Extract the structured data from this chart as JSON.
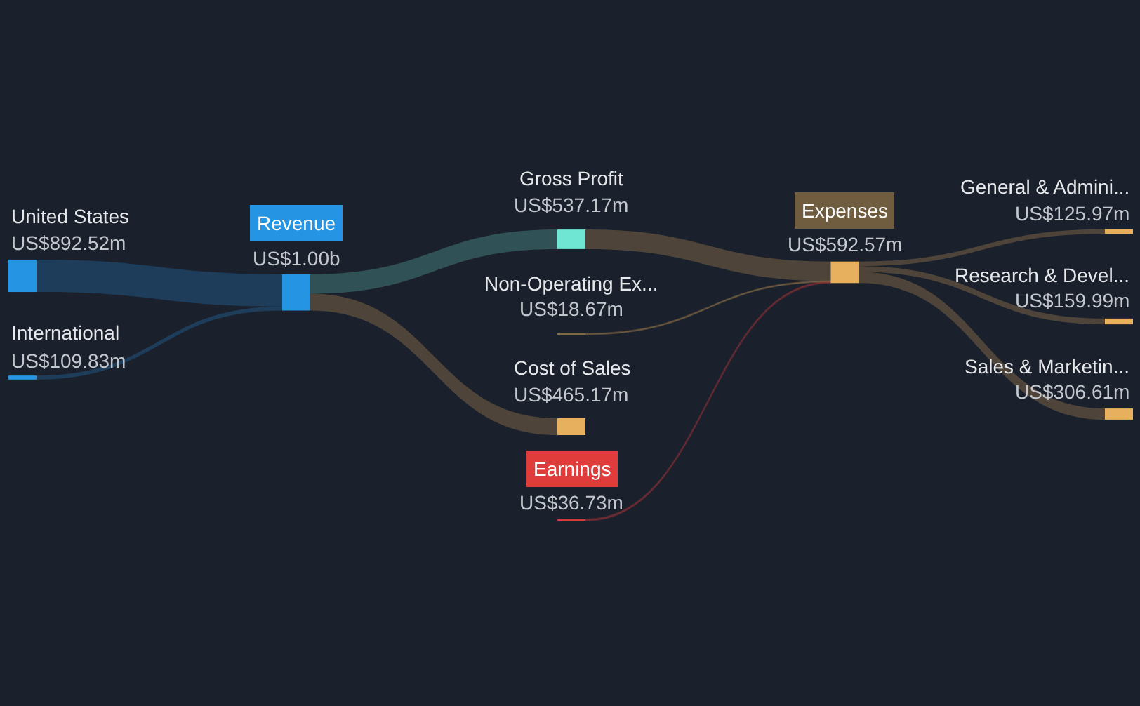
{
  "chart_data": {
    "type": "other",
    "categories": [
      "United States",
      "International",
      "Revenue",
      "Gross Profit",
      "Non-Operating Ex...",
      "Cost of Sales",
      "Earnings",
      "Expenses",
      "General & Admini...",
      "Research & Devel...",
      "Sales & Marketin..."
    ],
    "values": [
      892520000,
      109830000,
      1000000000,
      537170000,
      18670000,
      465170000,
      36730000,
      592570000,
      125970000,
      159990000,
      306610000
    ],
    "value_labels": [
      "US$892.52m",
      "US$109.83m",
      "US$1.00b",
      "US$537.17m",
      "US$18.67m",
      "US$465.17m",
      "US$36.73m",
      "US$592.57m",
      "US$125.97m",
      "US$159.99m",
      "US$306.61m"
    ],
    "colors": [
      "#2594e2",
      "#2594e2",
      "#2594e2",
      "#6fe6d3",
      "#e6b05e",
      "#e6b05e",
      "#e03c3c",
      "#e6b05e",
      "#e6b05e",
      "#e6b05e",
      "#e6b05e"
    ]
  }
}
